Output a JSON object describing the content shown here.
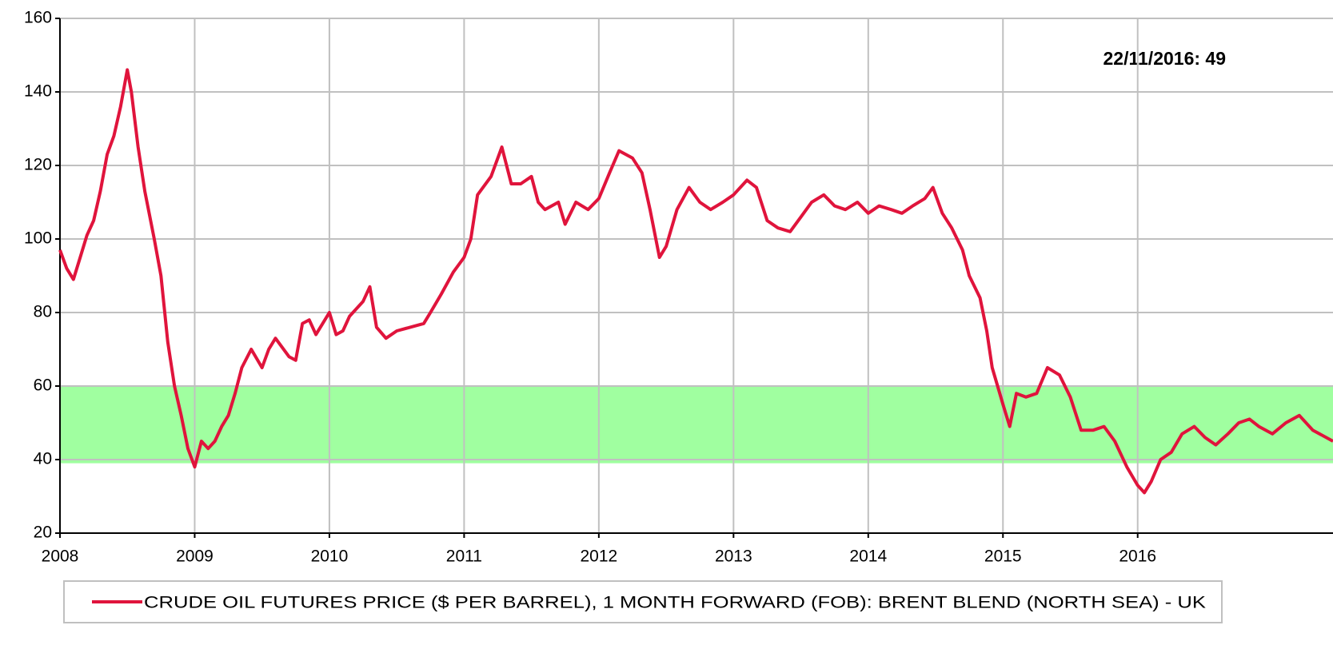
{
  "chart_data": {
    "type": "line",
    "annotation": "22/11/2016:  49",
    "xlim": [
      2008,
      2017.45
    ],
    "xticks": [
      2008,
      2009,
      2010,
      2011,
      2012,
      2013,
      2014,
      2015,
      2016
    ],
    "ylim": [
      20,
      160
    ],
    "yticks": [
      20,
      40,
      60,
      80,
      100,
      120,
      140,
      160
    ],
    "grid": true,
    "legend": "bottom",
    "highlight_band": {
      "from": 39,
      "to": 60,
      "color": "#a0ffa0"
    },
    "x": [
      2008.0,
      2008.05,
      2008.1,
      2008.15,
      2008.2,
      2008.25,
      2008.3,
      2008.35,
      2008.4,
      2008.45,
      2008.5,
      2008.53,
      2008.58,
      2008.63,
      2008.7,
      2008.75,
      2008.8,
      2008.85,
      2008.9,
      2008.95,
      2009.0,
      2009.05,
      2009.1,
      2009.15,
      2009.2,
      2009.25,
      2009.3,
      2009.35,
      2009.42,
      2009.5,
      2009.55,
      2009.6,
      2009.7,
      2009.75,
      2009.8,
      2009.85,
      2009.9,
      2009.95,
      2010.0,
      2010.05,
      2010.1,
      2010.15,
      2010.25,
      2010.3,
      2010.35,
      2010.42,
      2010.5,
      2010.6,
      2010.7,
      2010.75,
      2010.83,
      2010.92,
      2011.0,
      2011.05,
      2011.1,
      2011.2,
      2011.28,
      2011.35,
      2011.42,
      2011.5,
      2011.55,
      2011.6,
      2011.7,
      2011.75,
      2011.83,
      2011.92,
      2012.0,
      2012.08,
      2012.15,
      2012.25,
      2012.32,
      2012.38,
      2012.45,
      2012.5,
      2012.58,
      2012.67,
      2012.75,
      2012.83,
      2012.92,
      2013.0,
      2013.1,
      2013.17,
      2013.25,
      2013.33,
      2013.42,
      2013.5,
      2013.58,
      2013.67,
      2013.75,
      2013.83,
      2013.92,
      2014.0,
      2014.08,
      2014.17,
      2014.25,
      2014.33,
      2014.42,
      2014.48,
      2014.55,
      2014.62,
      2014.7,
      2014.75,
      2014.83,
      2014.88,
      2014.92,
      2015.0,
      2015.05,
      2015.1,
      2015.17,
      2015.25,
      2015.33,
      2015.42,
      2015.5,
      2015.58,
      2015.67,
      2015.75,
      2015.83,
      2015.92,
      2016.0,
      2016.05,
      2016.1,
      2016.17,
      2016.25,
      2016.33,
      2016.42,
      2016.5,
      2016.58,
      2016.67,
      2016.75,
      2016.83,
      2016.9,
      2017.0,
      2017.1,
      2017.2,
      2017.3,
      2017.45
    ],
    "series": [
      {
        "name": "CRUDE OIL FUTURES PRICE ($ PER BARREL), 1 MONTH FORWARD (FOB): BRENT BLEND (NORTH SEA) - UK",
        "color": "#e0143c",
        "values": [
          97,
          92,
          89,
          95,
          101,
          105,
          113,
          123,
          128,
          136,
          146,
          140,
          125,
          113,
          100,
          90,
          72,
          60,
          52,
          43,
          38,
          45,
          43,
          45,
          49,
          52,
          58,
          65,
          70,
          65,
          70,
          73,
          68,
          67,
          77,
          78,
          74,
          77,
          80,
          74,
          75,
          79,
          83,
          87,
          76,
          73,
          75,
          76,
          77,
          80,
          85,
          91,
          95,
          100,
          112,
          117,
          125,
          115,
          115,
          117,
          110,
          108,
          110,
          104,
          110,
          108,
          111,
          118,
          124,
          122,
          118,
          108,
          95,
          98,
          108,
          114,
          110,
          108,
          110,
          112,
          116,
          114,
          105,
          103,
          102,
          106,
          110,
          112,
          109,
          108,
          110,
          107,
          109,
          108,
          107,
          109,
          111,
          114,
          107,
          103,
          97,
          90,
          84,
          75,
          65,
          55,
          49,
          58,
          57,
          58,
          65,
          63,
          57,
          48,
          48,
          49,
          45,
          38,
          33,
          31,
          34,
          40,
          42,
          47,
          49,
          46,
          44,
          47,
          50,
          51,
          49,
          47,
          50,
          52,
          48,
          45
        ]
      }
    ]
  }
}
